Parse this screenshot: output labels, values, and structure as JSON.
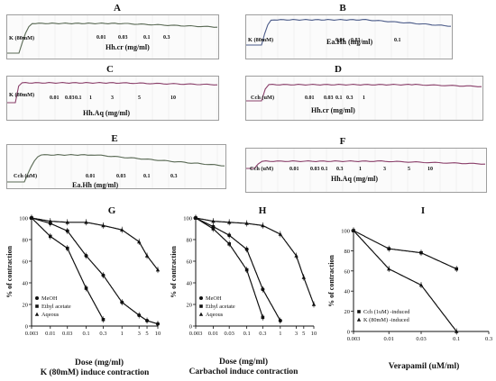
{
  "chart_data": [
    {
      "panel": "A",
      "type": "line",
      "stim": "K (80mM)",
      "ticks": [
        "0.01",
        "0.03",
        "0.1",
        "0.3"
      ],
      "xlabel": "Hh.cr (mg/ml)",
      "color": "#5a6a55"
    },
    {
      "panel": "B",
      "type": "line",
      "stim": "K (80mM)",
      "ticks": [
        "0.01",
        "0.03",
        "0.1"
      ],
      "xlabel": "Ea.Hh (mg/ml)",
      "color": "#4a5a88"
    },
    {
      "panel": "C",
      "type": "line",
      "stim": "K (80mM)",
      "ticks": [
        "0.01",
        "0.03",
        "0.1",
        "1",
        "3",
        "5",
        "10"
      ],
      "xlabel": "Hh.Aq (mg/ml)",
      "color": "#8a3f6a"
    },
    {
      "panel": "D",
      "type": "line",
      "stim": "Cch (uM)",
      "ticks": [
        "0.01",
        "0.03",
        "0.1",
        "0.3",
        "1"
      ],
      "xlabel": "Hh.cr (mg/ml)",
      "color": "#8a3f6a"
    },
    {
      "panel": "E",
      "type": "line",
      "stim": "Cch (uM)",
      "ticks": [
        "0.01",
        "0.03",
        "0.1",
        "0.3"
      ],
      "xlabel": "Ea.Hh (mg/ml)",
      "color": "#5a6a55"
    },
    {
      "panel": "F",
      "type": "line",
      "stim": "Cch (uM)",
      "ticks": [
        "0.01",
        "0.03",
        "0.1",
        "0.3",
        "1",
        "3",
        "5",
        "10"
      ],
      "xlabel": "Hh.Aq (mg/ml)",
      "color": "#8a3f6a"
    },
    {
      "panel": "G",
      "type": "scatter",
      "xlabel": "Dose (mg/ml)",
      "subtitle": "K (80mM) induce contraction",
      "ylabel": "% of contraction",
      "xscale": "log",
      "xlim": [
        0.003,
        10
      ],
      "ylim": [
        0,
        100
      ],
      "xticks": [
        "0.003",
        "0.01",
        "0.03",
        "0.1",
        "0.3",
        "1",
        "3",
        "5",
        "10"
      ],
      "yticks": [
        "0",
        "20",
        "40",
        "60",
        "80",
        "100"
      ],
      "series": [
        {
          "name": "MeOH",
          "marker": "circle",
          "x": [
            0.003,
            0.01,
            0.03,
            0.1,
            0.3,
            1,
            3,
            5,
            10
          ],
          "y": [
            100,
            95,
            88,
            65,
            47,
            22,
            10,
            5,
            2
          ]
        },
        {
          "name": "Ethyl acetate",
          "marker": "square",
          "x": [
            0.003,
            0.01,
            0.03,
            0.1,
            0.3
          ],
          "y": [
            100,
            83,
            72,
            35,
            6
          ]
        },
        {
          "name": "Aqeous",
          "marker": "triangle",
          "x": [
            0.003,
            0.01,
            0.03,
            0.1,
            0.3,
            1,
            3,
            5,
            10
          ],
          "y": [
            100,
            97,
            96,
            96,
            93,
            89,
            78,
            65,
            52
          ]
        }
      ]
    },
    {
      "panel": "H",
      "type": "scatter",
      "xlabel": "Dose (mg/ml)",
      "subtitle": "Carbachol induce contraction",
      "ylabel": "% of contraction",
      "xscale": "log",
      "xlim": [
        0.003,
        10
      ],
      "ylim": [
        0,
        100
      ],
      "xticks": [
        "0.003",
        "0.01",
        "0.03",
        "0.1",
        "0.3",
        "1",
        "3",
        "5",
        "10"
      ],
      "yticks": [
        "0",
        "20",
        "40",
        "60",
        "80",
        "100"
      ],
      "series": [
        {
          "name": "MeOH",
          "marker": "circle",
          "x": [
            0.003,
            0.01,
            0.03,
            0.1,
            0.3,
            1
          ],
          "y": [
            100,
            92,
            84,
            71,
            34,
            5
          ]
        },
        {
          "name": "Ethyl acetate",
          "marker": "square",
          "x": [
            0.003,
            0.01,
            0.03,
            0.1,
            0.3
          ],
          "y": [
            100,
            90,
            76,
            52,
            8
          ]
        },
        {
          "name": "Aqeous",
          "marker": "triangle",
          "x": [
            0.003,
            0.01,
            0.03,
            0.1,
            0.3,
            1,
            3,
            5,
            10
          ],
          "y": [
            100,
            97,
            96,
            95,
            93,
            85,
            65,
            45,
            20
          ]
        }
      ]
    },
    {
      "panel": "I",
      "type": "scatter",
      "xlabel": "Verapamil (uM/ml)",
      "ylabel": "% of contraction",
      "xscale": "log",
      "xlim": [
        0.003,
        0.3
      ],
      "ylim": [
        0,
        100
      ],
      "xticks": [
        "0.003",
        "0.01",
        "0.03",
        "0.1",
        "0.3"
      ],
      "yticks": [
        "0",
        "20",
        "40",
        "60",
        "80",
        "100"
      ],
      "series": [
        {
          "name": "Cch (1uM) -induced",
          "marker": "square",
          "x": [
            0.003,
            0.01,
            0.03,
            0.1
          ],
          "y": [
            100,
            82,
            78,
            62
          ]
        },
        {
          "name": "K (80mM) -induced",
          "marker": "triangle",
          "x": [
            0.003,
            0.01,
            0.03,
            0.1
          ],
          "y": [
            100,
            62,
            46,
            0
          ]
        }
      ]
    }
  ]
}
